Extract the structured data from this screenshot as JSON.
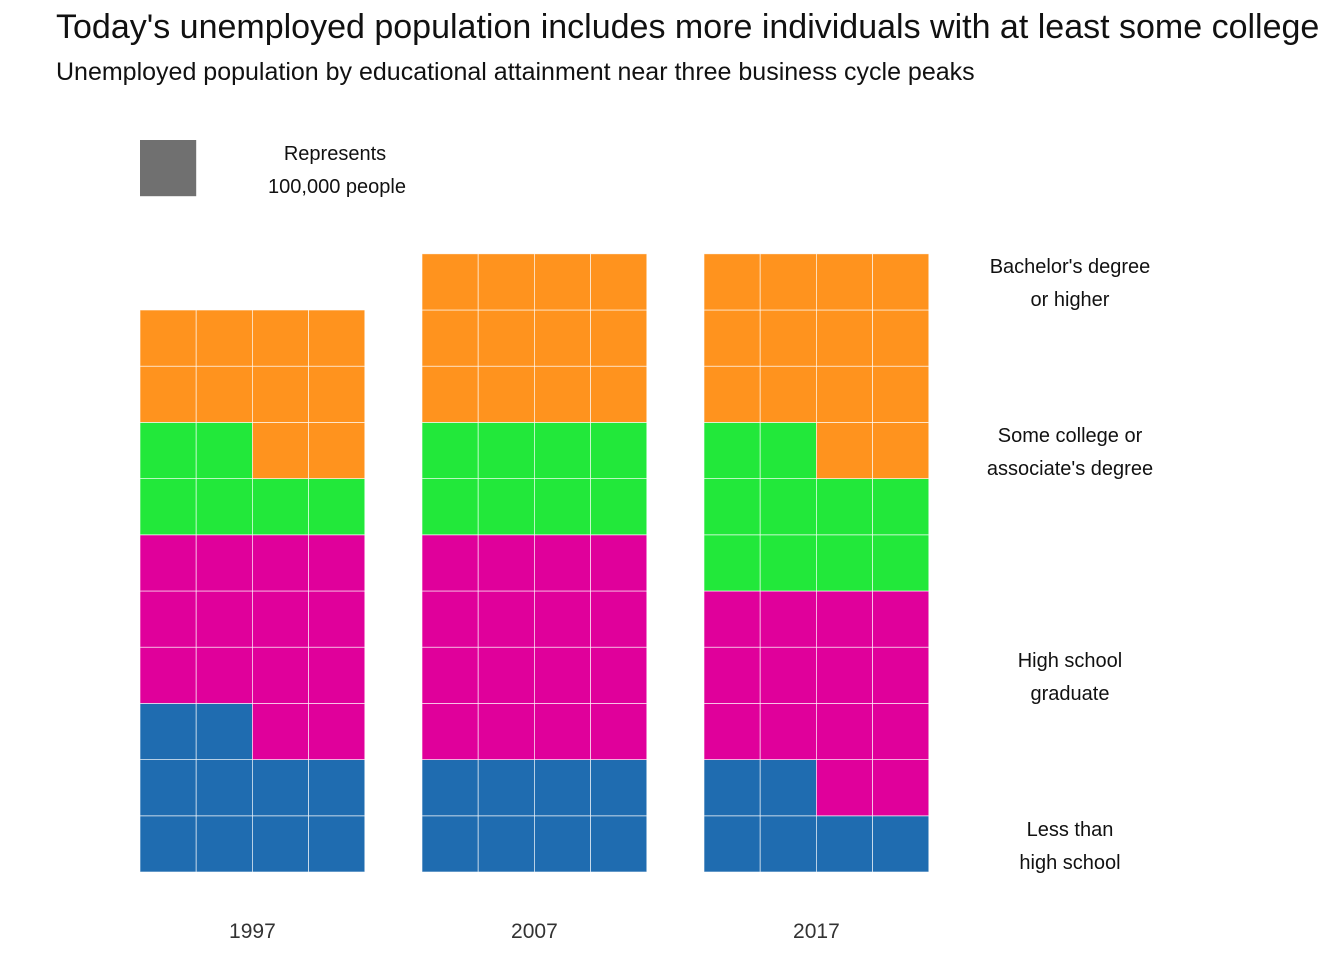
{
  "title": "Today's unemployed population includes more individuals with at least some college",
  "subtitle": "Unemployed population by educational attainment near three business cycle peaks",
  "legend": {
    "key_line1": "Represents",
    "key_line2": "100,000 people",
    "key_color": "#707070"
  },
  "chart_data": {
    "type": "waffle",
    "title": "Today's unemployed population includes more individuals with at least some college",
    "subtitle": "Unemployed population by educational attainment near three business cycle peaks",
    "unit": "Each square represents 100,000 people",
    "columns_per_stack": 4,
    "categories": [
      "1997",
      "2007",
      "2017"
    ],
    "series": [
      {
        "name": "Less than high school",
        "label_lines": [
          "Less than",
          "high school"
        ],
        "color": "#1f6cb0",
        "values": [
          10,
          8,
          6
        ]
      },
      {
        "name": "High school graduate",
        "label_lines": [
          "High school",
          "graduate"
        ],
        "color": "#e0009b",
        "values": [
          14,
          16,
          14
        ]
      },
      {
        "name": "Some college or associate's degree",
        "label_lines": [
          "Some college or",
          "associate's degree"
        ],
        "color": "#22e83a",
        "values": [
          6,
          8,
          10
        ]
      },
      {
        "name": "Bachelor's degree or higher",
        "label_lines": [
          "Bachelor's degree",
          "or higher"
        ],
        "color": "#ff931e",
        "values": [
          10,
          12,
          14
        ]
      }
    ]
  }
}
